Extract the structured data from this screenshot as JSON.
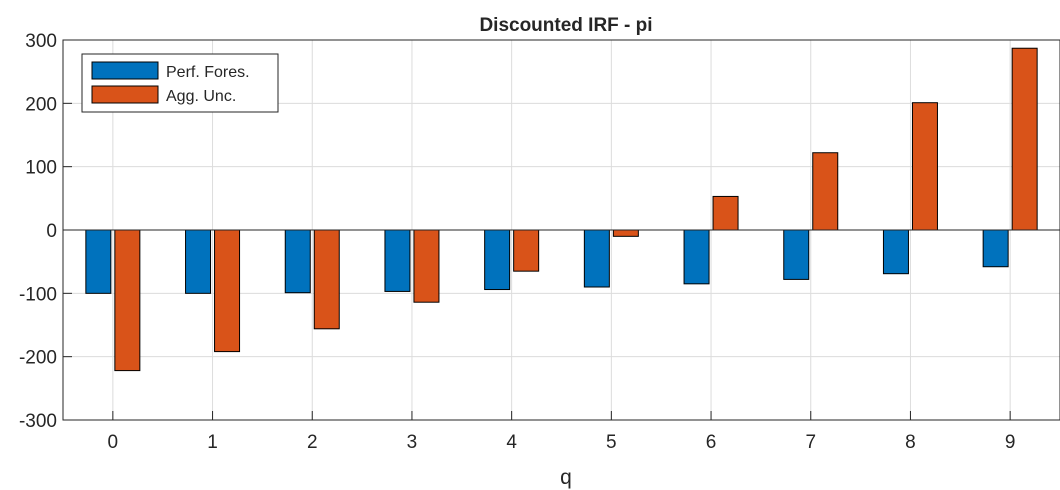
{
  "chart_data": {
    "type": "bar",
    "title": "Discounted IRF - pi",
    "xlabel": "q",
    "ylabel": "",
    "categories": [
      "0",
      "1",
      "2",
      "3",
      "4",
      "5",
      "6",
      "7",
      "8",
      "9"
    ],
    "ylim": [
      -300,
      300
    ],
    "yticks": [
      -300,
      -200,
      -100,
      0,
      100,
      200,
      300
    ],
    "grid": true,
    "legend_position": "top-left",
    "series": [
      {
        "name": "Perf. Fores.",
        "color": "#0072BD",
        "values": [
          -100,
          -100,
          -99,
          -97,
          -94,
          -90,
          -85,
          -78,
          -69,
          -58
        ]
      },
      {
        "name": "Agg. Unc.",
        "color": "#D95319",
        "values": [
          -222,
          -192,
          -156,
          -114,
          -65,
          -10,
          53,
          122,
          201,
          287
        ]
      }
    ]
  }
}
